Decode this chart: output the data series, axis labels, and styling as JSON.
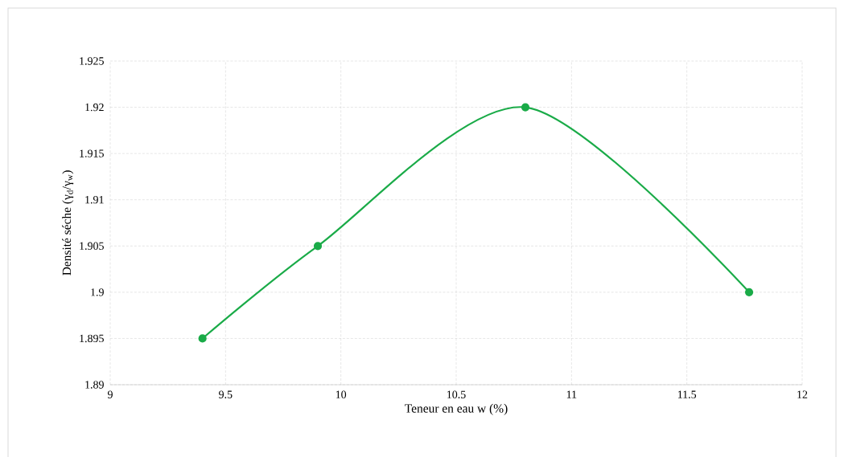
{
  "chart_data": {
    "type": "line",
    "xlabel": "Teneur en eau w (%)",
    "ylabel": "Densité séche (γ$_{d}$/γ$_{w}$)",
    "x": [
      9.4,
      9.9,
      10.8,
      11.77
    ],
    "series": [
      {
        "color": "#1aab48",
        "values": [
          1.895,
          1.905,
          1.92,
          1.9
        ]
      }
    ],
    "xlim": [
      9,
      12
    ],
    "xticks": [
      9,
      9.5,
      10,
      10.5,
      11,
      11.5,
      12
    ],
    "ylim": [
      1.89,
      1.925
    ],
    "yticks": [
      1.89,
      1.895,
      1.9,
      1.905,
      1.91,
      1.915,
      1.92,
      1.925
    ],
    "grid": true,
    "marker": "circle",
    "line_style": "solid"
  }
}
